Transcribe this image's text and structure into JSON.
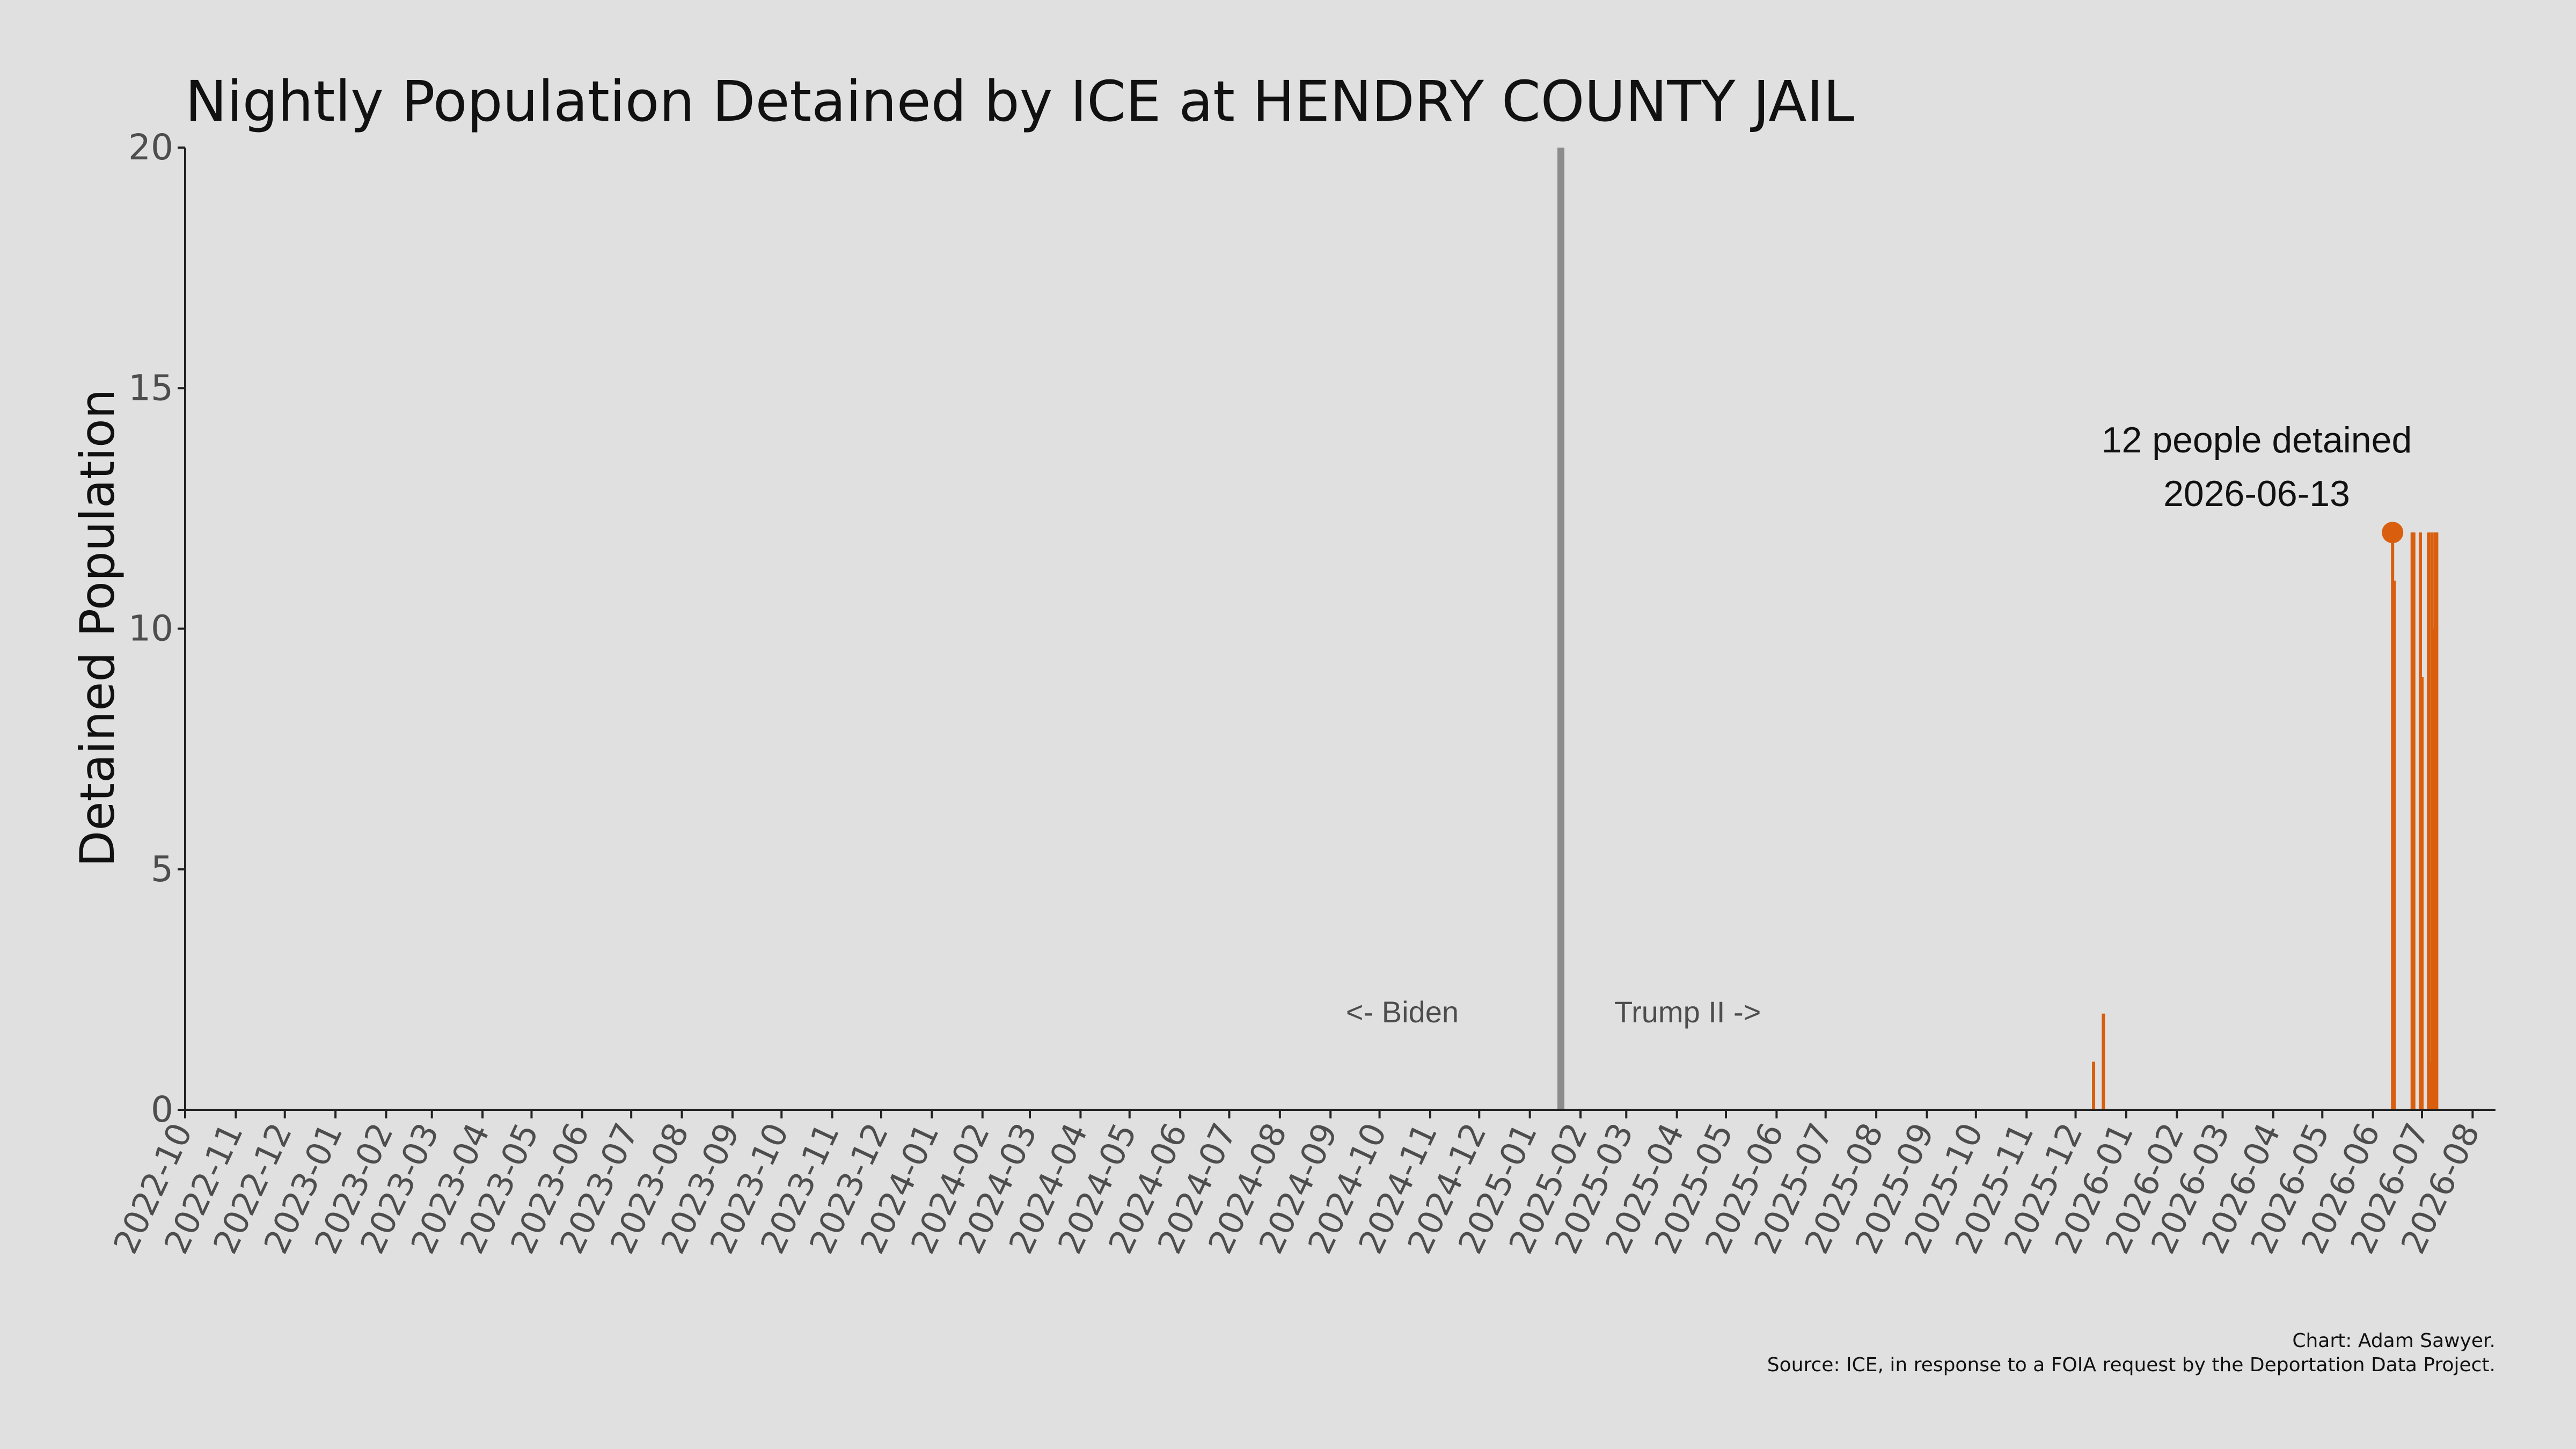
{
  "chart_data": {
    "type": "bar",
    "title": "Nightly Population Detained by ICE at HENDRY COUNTY JAIL",
    "xlabel": "",
    "ylabel": "Detained Population",
    "ylim": [
      0,
      20
    ],
    "yticks": [
      0,
      5,
      10,
      15,
      20
    ],
    "xlim": [
      "2022-10-01",
      "2026-08-15"
    ],
    "xtick_labels": [
      "2022-10",
      "2022-11",
      "2022-12",
      "2023-01",
      "2023-02",
      "2023-03",
      "2023-04",
      "2023-05",
      "2023-06",
      "2023-07",
      "2023-08",
      "2023-09",
      "2023-10",
      "2023-11",
      "2023-12",
      "2024-01",
      "2024-02",
      "2024-03",
      "2024-04",
      "2024-05",
      "2024-06",
      "2024-07",
      "2024-08",
      "2024-09",
      "2024-10",
      "2024-11",
      "2024-12",
      "2025-01",
      "2025-02",
      "2025-03",
      "2025-04",
      "2025-05",
      "2025-06",
      "2025-07",
      "2025-08",
      "2025-09",
      "2025-10",
      "2025-11",
      "2025-12",
      "2026-01",
      "2026-02",
      "2026-03",
      "2026-04",
      "2026-05",
      "2026-06",
      "2026-07",
      "2026-08"
    ],
    "grid": false,
    "series": [
      {
        "color": "#d95f0e",
        "x": [
          "2025-12-12",
          "2025-12-18",
          "2026-06-13",
          "2026-06-14",
          "2026-06-25",
          "2026-06-26",
          "2026-06-30",
          "2026-07-01",
          "2026-07-05",
          "2026-07-06",
          "2026-07-07",
          "2026-07-08",
          "2026-07-09",
          "2026-07-10"
        ],
        "y": [
          1,
          2,
          12,
          11,
          12,
          12,
          12,
          9,
          12,
          1,
          12,
          10,
          12,
          12
        ]
      }
    ],
    "reference_line": {
      "x": "2025-01-20",
      "color": "#8c8c8c"
    },
    "era_labels": {
      "left": "<- Biden",
      "right": "Trump II ->"
    },
    "highlight": {
      "x": "2026-06-13",
      "y": 12,
      "color": "#d95f0e",
      "label_line1": "12 people detained",
      "label_line2": "2026-06-13"
    },
    "credits": {
      "line1": "Chart: Adam Sawyer.",
      "line2": "Source: ICE, in response to a FOIA request by the Deportation Data Project."
    },
    "colors": {
      "background": "#e0e0e0",
      "axis": "#222222",
      "tick_text": "#4d4d4d"
    }
  }
}
